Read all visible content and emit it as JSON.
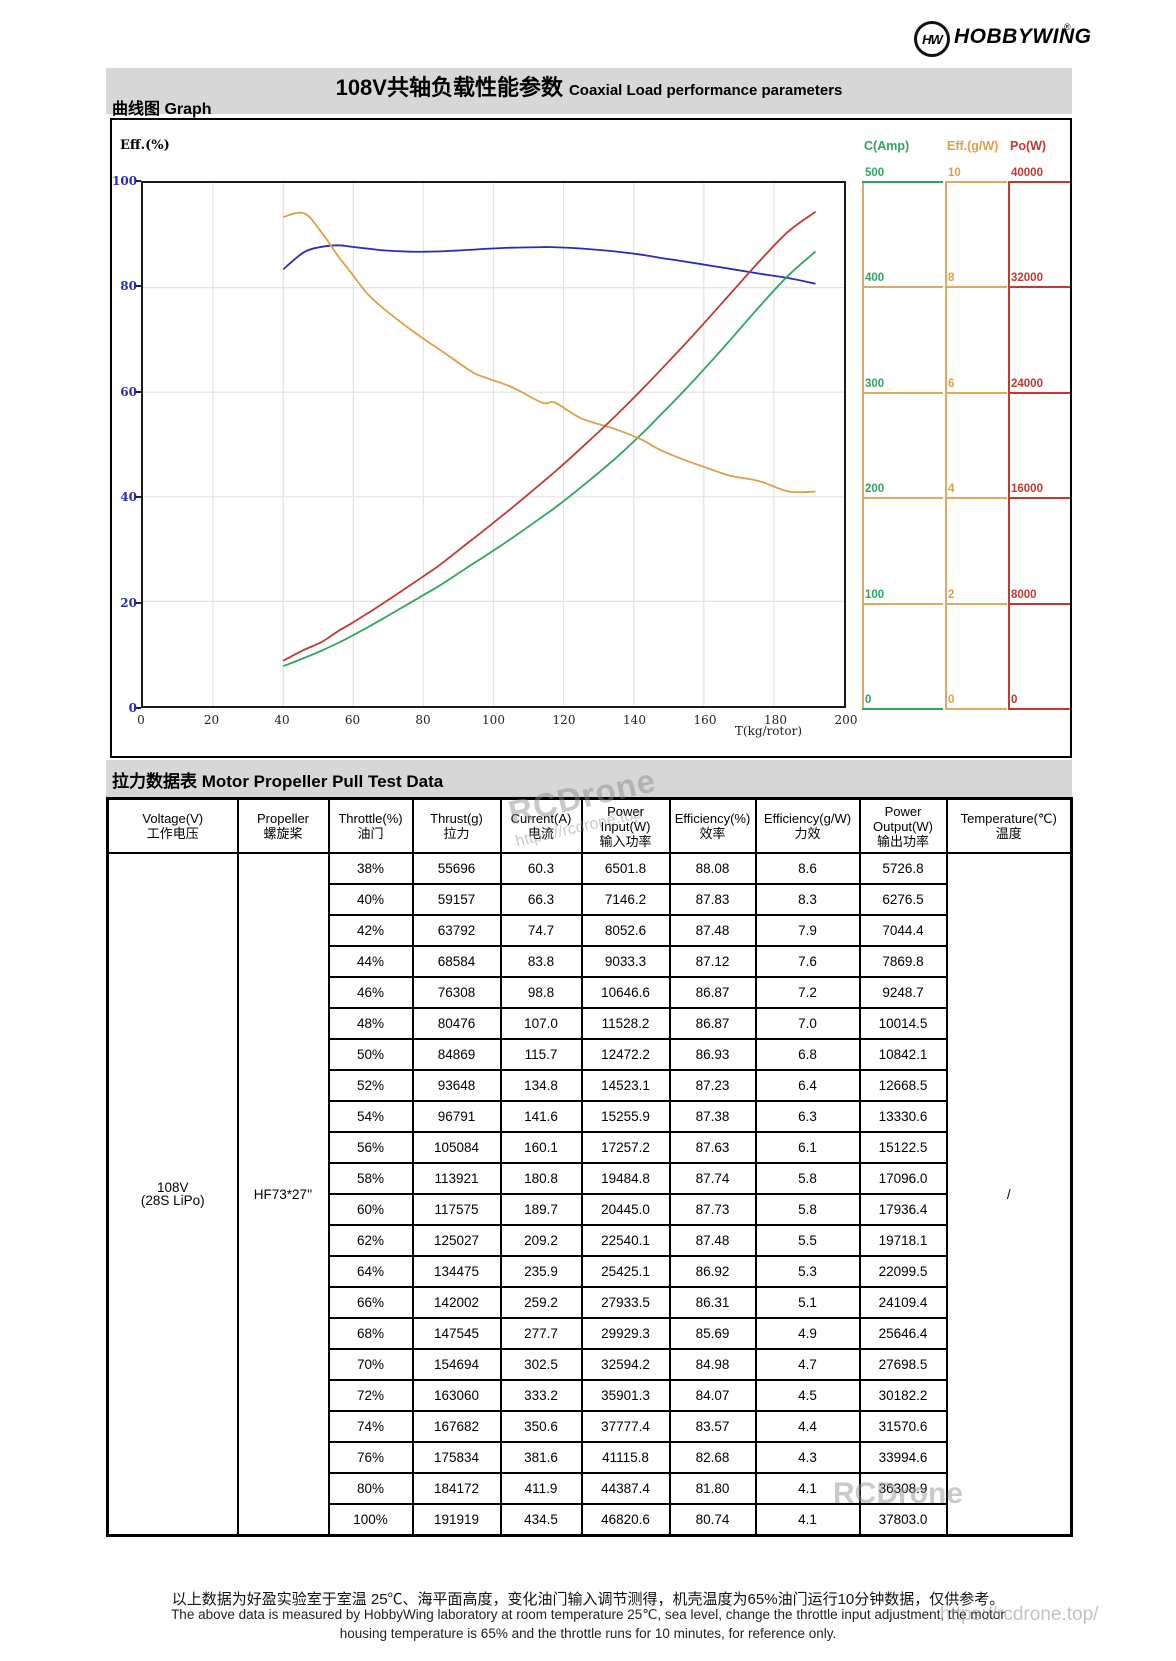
{
  "logo": {
    "emblem": "HW",
    "brand": "HOBBYWING",
    "reg": "®"
  },
  "header": {
    "title_zh": "108V共轴负载性能参数",
    "title_en": "Coaxial Load performance parameters",
    "graph_label": "曲线图 Graph"
  },
  "chart": {
    "left_axis": {
      "label": "Eff.(%)",
      "color": "#2b2bb4",
      "ticks": [
        "100",
        "80",
        "60",
        "40",
        "20",
        "0"
      ]
    },
    "x_axis": {
      "label": "T(kg/rotor)",
      "ticks": [
        "0",
        "20",
        "40",
        "60",
        "80",
        "100",
        "120",
        "140",
        "160",
        "180",
        "200"
      ]
    },
    "right_axes": [
      {
        "name": "C(Amp)",
        "color": "#2fa55e",
        "ticks": [
          "500",
          "400",
          "300",
          "200",
          "100",
          "0"
        ],
        "rung_color": "#dcab6b",
        "top_rung_color": "#2fa55e",
        "bottom_rung_color": "#2fa55e",
        "vline_color": "#dcab6b"
      },
      {
        "name": "Eff.(g/W)",
        "color": "#de9f48",
        "ticks": [
          "10",
          "8",
          "6",
          "4",
          "2",
          "0"
        ],
        "rung_color": "#e2aa60",
        "top_rung_color": "#e2aa60",
        "bottom_rung_color": "#e2aa60",
        "vline_color": "#e2aa60"
      },
      {
        "name": "Po(W)",
        "color": "#c2392f",
        "ticks": [
          "40000",
          "32000",
          "24000",
          "16000",
          "8000",
          "0"
        ],
        "rung_color": "#c2392f",
        "top_rung_color": "#c2392f",
        "bottom_rung_color": "#c2392f",
        "vline_color": "#c2392f"
      }
    ]
  },
  "chart_data": {
    "type": "line",
    "title": "108V Coaxial Load performance parameters",
    "xlabel": "T(kg/rotor)",
    "x_range": [
      0,
      200
    ],
    "grid": true,
    "x": [
      40,
      46,
      51,
      55.7,
      59.2,
      63.8,
      68.6,
      76.3,
      80.5,
      84.9,
      93.6,
      96.8,
      105.1,
      113.9,
      117.6,
      125.0,
      134.5,
      142.0,
      147.5,
      154.7,
      163.1,
      167.7,
      175.8,
      184.2,
      191.9
    ],
    "series": [
      {
        "name": "Eff.(%)",
        "color": "#2b2bb4",
        "axis_max": 100,
        "values": [
          83.5,
          86.8,
          87.8,
          88.08,
          87.83,
          87.48,
          87.12,
          86.87,
          86.87,
          86.93,
          87.23,
          87.38,
          87.63,
          87.74,
          87.73,
          87.48,
          86.92,
          86.31,
          85.69,
          84.98,
          84.07,
          83.57,
          82.68,
          81.8,
          80.74
        ]
      },
      {
        "name": "C(Amp)",
        "color": "#2fa55e",
        "axis_max": 500,
        "values": [
          38,
          46,
          53,
          60.3,
          66.3,
          74.7,
          83.8,
          98.8,
          107.0,
          115.7,
          134.8,
          141.6,
          160.1,
          180.8,
          189.7,
          209.2,
          235.9,
          259.2,
          277.7,
          302.5,
          333.2,
          350.6,
          381.6,
          411.9,
          434.5
        ]
      },
      {
        "name": "Eff.(g/W)",
        "color": "#de9f48",
        "axis_max": 10,
        "values": [
          9.35,
          9.42,
          9.05,
          8.6,
          8.3,
          7.9,
          7.6,
          7.2,
          7.0,
          6.8,
          6.4,
          6.3,
          6.1,
          5.8,
          5.8,
          5.5,
          5.3,
          5.1,
          4.9,
          4.7,
          4.5,
          4.4,
          4.3,
          4.1,
          4.1
        ]
      },
      {
        "name": "Po(W)",
        "color": "#c2392f",
        "axis_max": 40000,
        "values": [
          3460,
          4300,
          4900,
          5726.8,
          6276.5,
          7044.4,
          7869.8,
          9248.7,
          10014.5,
          10842.1,
          12668.5,
          13330.6,
          15122.5,
          17096.0,
          17936.4,
          19718.1,
          22099.5,
          24109.4,
          25646.4,
          27698.5,
          30182.2,
          31570.6,
          33994.6,
          36308.9,
          37803.0
        ]
      }
    ]
  },
  "table": {
    "section_title": "拉力数据表 Motor Propeller Pull Test Data",
    "headers": [
      "Voltage(V)\n工作电压",
      "Propeller\n螺旋桨",
      "Throttle(%)\n油门",
      "Thrust(g)\n拉力",
      "Current(A)\n电流",
      "Power\nInput(W)\n输入功率",
      "Efficiency(%)\n效率",
      "Efficiency(g/W)\n力效",
      "Power\nOutput(W)\n输出功率",
      "Temperature(℃)\n温度"
    ],
    "voltage": "108V\n(28S LiPo)",
    "propeller": "HF73*27''",
    "temperature": "/",
    "rows": [
      [
        "38%",
        "55696",
        "60.3",
        "6501.8",
        "88.08",
        "8.6",
        "5726.8"
      ],
      [
        "40%",
        "59157",
        "66.3",
        "7146.2",
        "87.83",
        "8.3",
        "6276.5"
      ],
      [
        "42%",
        "63792",
        "74.7",
        "8052.6",
        "87.48",
        "7.9",
        "7044.4"
      ],
      [
        "44%",
        "68584",
        "83.8",
        "9033.3",
        "87.12",
        "7.6",
        "7869.8"
      ],
      [
        "46%",
        "76308",
        "98.8",
        "10646.6",
        "86.87",
        "7.2",
        "9248.7"
      ],
      [
        "48%",
        "80476",
        "107.0",
        "11528.2",
        "86.87",
        "7.0",
        "10014.5"
      ],
      [
        "50%",
        "84869",
        "115.7",
        "12472.2",
        "86.93",
        "6.8",
        "10842.1"
      ],
      [
        "52%",
        "93648",
        "134.8",
        "14523.1",
        "87.23",
        "6.4",
        "12668.5"
      ],
      [
        "54%",
        "96791",
        "141.6",
        "15255.9",
        "87.38",
        "6.3",
        "13330.6"
      ],
      [
        "56%",
        "105084",
        "160.1",
        "17257.2",
        "87.63",
        "6.1",
        "15122.5"
      ],
      [
        "58%",
        "113921",
        "180.8",
        "19484.8",
        "87.74",
        "5.8",
        "17096.0"
      ],
      [
        "60%",
        "117575",
        "189.7",
        "20445.0",
        "87.73",
        "5.8",
        "17936.4"
      ],
      [
        "62%",
        "125027",
        "209.2",
        "22540.1",
        "87.48",
        "5.5",
        "19718.1"
      ],
      [
        "64%",
        "134475",
        "235.9",
        "25425.1",
        "86.92",
        "5.3",
        "22099.5"
      ],
      [
        "66%",
        "142002",
        "259.2",
        "27933.5",
        "86.31",
        "5.1",
        "24109.4"
      ],
      [
        "68%",
        "147545",
        "277.7",
        "29929.3",
        "85.69",
        "4.9",
        "25646.4"
      ],
      [
        "70%",
        "154694",
        "302.5",
        "32594.2",
        "84.98",
        "4.7",
        "27698.5"
      ],
      [
        "72%",
        "163060",
        "333.2",
        "35901.3",
        "84.07",
        "4.5",
        "30182.2"
      ],
      [
        "74%",
        "167682",
        "350.6",
        "37777.4",
        "83.57",
        "4.4",
        "31570.6"
      ],
      [
        "76%",
        "175834",
        "381.6",
        "41115.8",
        "82.68",
        "4.3",
        "33994.6"
      ],
      [
        "80%",
        "184172",
        "411.9",
        "44387.4",
        "81.80",
        "4.1",
        "36308.9"
      ],
      [
        "100%",
        "191919",
        "434.5",
        "46820.6",
        "80.74",
        "4.1",
        "37803.0"
      ]
    ]
  },
  "footer": {
    "line_zh": "以上数据为好盈实验室于室温 25℃、海平面高度，变化油门输入调节测得，机壳温度为65%油门运行10分钟数据，仅供参考。",
    "line_en1": "The above data is measured by HobbyWing laboratory at room temperature 25℃, sea level, change the throttle input adjustment, the motor",
    "line_en2": "housing temperature is 65% and the throttle runs for 10 minutes, for reference only."
  },
  "watermarks": {
    "header_l1": "RCDrone",
    "header_l2": "https://rcdrone.top",
    "table": "RCDrone",
    "footer": "https://rcdrone.top/"
  },
  "colors": {
    "band_gray": "#d7d7d7",
    "gridline": "#e3e3e3",
    "blue": "#2b2bb4",
    "green": "#2fa55e",
    "orange": "#de9f48",
    "red": "#c2392f"
  }
}
